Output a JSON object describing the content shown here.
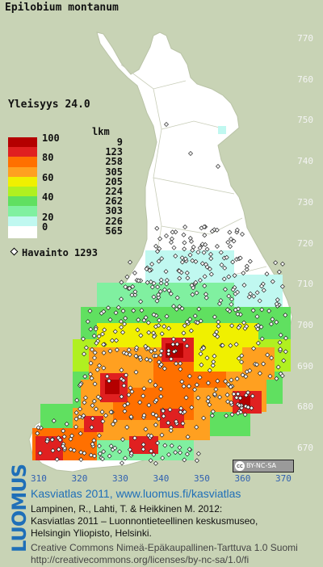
{
  "title": "Epilobium montanum",
  "frequency_label": "Yleisyys  24.0",
  "legend": {
    "count_header": "lkm",
    "classes": [
      {
        "label": "100",
        "count": "9",
        "color": "#b40000"
      },
      {
        "label": "",
        "count": "123",
        "color": "#e02020"
      },
      {
        "label": "80",
        "count": "258",
        "color": "#ff7000"
      },
      {
        "label": "",
        "count": "305",
        "color": "#ffa020"
      },
      {
        "label": "60",
        "count": "205",
        "color": "#f0f000"
      },
      {
        "label": "",
        "count": "224",
        "color": "#b0f020"
      },
      {
        "label": "40",
        "count": "262",
        "color": "#60e060"
      },
      {
        "label": "",
        "count": "303",
        "color": "#80f0a0"
      },
      {
        "label": "20",
        "count": "226",
        "color": "#c0f8f0"
      },
      {
        "label": "0",
        "count": "565",
        "color": "#ffffff"
      }
    ]
  },
  "observation_label": "Havainto 1293",
  "y_ticks": [
    "770",
    "760",
    "750",
    "740",
    "730",
    "720",
    "710",
    "700",
    "690",
    "680",
    "670"
  ],
  "x_ticks": [
    "310",
    "320",
    "330",
    "340",
    "350",
    "360",
    "370"
  ],
  "license_badge": "BY-NC-SA",
  "footer": {
    "logo": "LUOMUS",
    "line1": "Kasviatlas 2011, www.luomus.fi/kasviatlas",
    "line2": "Lampinen, R., Lahti, T. & Heikkinen M. 2012:",
    "line3": "Kasviatlas 2011 – Luonnontieteellinen keskusmuseo,",
    "line4": "Helsingin Yliopisto, Helsinki.",
    "line5": "Creative Commons Nimeä-Epäkaupallinen-Tarttuva 1.0 Suomi",
    "line6": "http://creativecommons.org/licenses/by-nc-sa/1.0/fi"
  }
}
